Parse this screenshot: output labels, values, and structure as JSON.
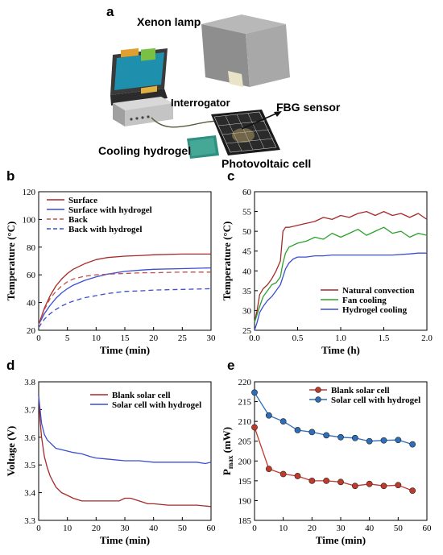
{
  "panel_a": {
    "label": "a",
    "xenon_lamp": "Xenon lamp",
    "interrogator": "Interrogator",
    "fbg_sensor": "FBG sensor",
    "cooling_hydrogel": "Cooling hydrogel",
    "photovoltaic_cell": "Photovoltaic cell",
    "colors": {
      "lamp": "#8a8a8a",
      "laptop": "#3a3a3a",
      "screen": "#2a9d8f",
      "device": "#c8c8c8",
      "panel": "#1a1a1a",
      "hydrogel": "#3a9a8a"
    }
  },
  "chart_data": [
    {
      "panel": "b",
      "type": "line",
      "xlabel": "Time (min)",
      "ylabel": "Temperature (°C)",
      "xlim": [
        0,
        30
      ],
      "ylim": [
        20,
        120
      ],
      "xticks": [
        "0",
        "5",
        "10",
        "15",
        "20",
        "25",
        "30"
      ],
      "yticks": [
        "20",
        "40",
        "60",
        "80",
        "100",
        "120"
      ],
      "legend_position": "top-left",
      "series": [
        {
          "name": "Surface",
          "color": "#a52a2a",
          "dash": false,
          "x": [
            0,
            1,
            2,
            3,
            4,
            5,
            6,
            8,
            10,
            12,
            15,
            18,
            20,
            25,
            30
          ],
          "y": [
            24,
            36,
            45,
            52,
            57,
            61,
            64,
            68,
            71,
            72.5,
            73.5,
            74,
            74.5,
            75,
            75
          ]
        },
        {
          "name": "Surface with hydrogel",
          "color": "#3a4fd0",
          "dash": false,
          "x": [
            0,
            1,
            2,
            3,
            4,
            5,
            6,
            8,
            10,
            12,
            15,
            18,
            20,
            25,
            30
          ],
          "y": [
            24,
            32,
            38,
            43,
            47,
            50,
            52.5,
            56,
            58.5,
            60.5,
            62.5,
            63.5,
            64,
            64.5,
            65
          ]
        },
        {
          "name": "Back",
          "color": "#c0504d",
          "dash": true,
          "x": [
            0,
            1,
            2,
            3,
            4,
            5,
            6,
            8,
            10,
            12,
            15,
            18,
            20,
            25,
            30
          ],
          "y": [
            24,
            35,
            43,
            48,
            52,
            55,
            57,
            59,
            60,
            60.5,
            61,
            61.5,
            61.5,
            62,
            62
          ]
        },
        {
          "name": "Back with hydrogel",
          "color": "#3a4fd0",
          "dash": true,
          "x": [
            0,
            1,
            2,
            3,
            4,
            5,
            6,
            8,
            10,
            12,
            15,
            18,
            20,
            25,
            30
          ],
          "y": [
            22,
            28,
            32,
            35,
            37.5,
            39.5,
            41,
            43.5,
            45,
            46.5,
            48,
            48.5,
            49,
            49.5,
            50
          ]
        }
      ]
    },
    {
      "panel": "c",
      "type": "line",
      "xlabel": "Time (h)",
      "ylabel": "Temperature (°C)",
      "xlim": [
        0,
        2
      ],
      "ylim": [
        25,
        60
      ],
      "xticks": [
        "0.0",
        "0.5",
        "1.0",
        "1.5",
        "2.0"
      ],
      "yticks": [
        "25",
        "30",
        "35",
        "40",
        "45",
        "50",
        "55",
        "60"
      ],
      "legend_position": "bottom-right",
      "series": [
        {
          "name": "Natural convection",
          "color": "#a52a2a",
          "x": [
            0,
            0.03,
            0.06,
            0.1,
            0.15,
            0.2,
            0.25,
            0.3,
            0.33,
            0.36,
            0.4,
            0.5,
            0.6,
            0.7,
            0.8,
            0.9,
            1.0,
            1.1,
            1.2,
            1.3,
            1.4,
            1.5,
            1.6,
            1.7,
            1.8,
            1.9,
            2.0
          ],
          "y": [
            27,
            30,
            34,
            35.5,
            36.5,
            38,
            40,
            42.5,
            50,
            51,
            51,
            51.5,
            52,
            52.5,
            53.5,
            53,
            54,
            53.5,
            54.5,
            55,
            54,
            55,
            54,
            54.5,
            53.5,
            54.5,
            53
          ]
        },
        {
          "name": "Fan cooling",
          "color": "#2ca02c",
          "x": [
            0,
            0.03,
            0.06,
            0.1,
            0.15,
            0.2,
            0.25,
            0.3,
            0.33,
            0.36,
            0.4,
            0.5,
            0.6,
            0.7,
            0.8,
            0.9,
            1.0,
            1.1,
            1.2,
            1.3,
            1.4,
            1.5,
            1.6,
            1.7,
            1.8,
            1.9,
            2.0
          ],
          "y": [
            27,
            29,
            31,
            33.5,
            35,
            36.5,
            37,
            38.5,
            42,
            44.5,
            46,
            47,
            47.5,
            48.5,
            48,
            49.5,
            48.5,
            49.5,
            50.5,
            49,
            50,
            51,
            49.5,
            50,
            48.5,
            49.5,
            49
          ]
        },
        {
          "name": "Hydrogel cooling",
          "color": "#3a4fd0",
          "x": [
            0,
            0.03,
            0.06,
            0.1,
            0.15,
            0.2,
            0.25,
            0.3,
            0.33,
            0.36,
            0.4,
            0.45,
            0.5,
            0.6,
            0.7,
            0.8,
            0.9,
            1.0,
            1.2,
            1.4,
            1.6,
            1.8,
            1.9,
            2.0
          ],
          "y": [
            25,
            27,
            29.5,
            31,
            32.5,
            33.5,
            35,
            36.5,
            38.5,
            40.5,
            42,
            43,
            43.5,
            43.5,
            43.8,
            43.8,
            44,
            44,
            44,
            44,
            44,
            44.3,
            44.5,
            44.5
          ]
        }
      ]
    },
    {
      "panel": "d",
      "type": "line",
      "xlabel": "Time (min)",
      "ylabel": "Voltage (V)",
      "xlim": [
        0,
        60
      ],
      "ylim": [
        3.3,
        3.8
      ],
      "xticks": [
        "0",
        "10",
        "20",
        "30",
        "40",
        "50",
        "60"
      ],
      "yticks": [
        "3.3",
        "3.4",
        "3.5",
        "3.6",
        "3.7",
        "3.8"
      ],
      "legend_position": "top-right",
      "series": [
        {
          "name": "Blank solar cell",
          "color": "#a52a2a",
          "x": [
            0,
            0.5,
            1,
            2,
            3,
            4,
            5,
            6,
            8,
            10,
            12,
            15,
            18,
            20,
            22,
            25,
            28,
            30,
            32,
            35,
            38,
            40,
            45,
            50,
            55,
            60
          ],
          "y": [
            3.75,
            3.66,
            3.6,
            3.53,
            3.49,
            3.46,
            3.44,
            3.42,
            3.4,
            3.39,
            3.38,
            3.37,
            3.37,
            3.37,
            3.37,
            3.37,
            3.37,
            3.38,
            3.38,
            3.37,
            3.36,
            3.36,
            3.355,
            3.355,
            3.355,
            3.35
          ]
        },
        {
          "name": "Solar cell with hydrogel",
          "color": "#3a4fd0",
          "x": [
            0,
            0.5,
            1,
            2,
            3,
            4,
            5,
            6,
            8,
            10,
            12,
            15,
            18,
            20,
            25,
            30,
            35,
            40,
            45,
            50,
            55,
            58,
            60
          ],
          "y": [
            3.75,
            3.7,
            3.65,
            3.61,
            3.59,
            3.58,
            3.57,
            3.56,
            3.555,
            3.55,
            3.545,
            3.54,
            3.53,
            3.525,
            3.52,
            3.515,
            3.515,
            3.51,
            3.51,
            3.51,
            3.51,
            3.505,
            3.51
          ]
        }
      ]
    },
    {
      "panel": "e",
      "type": "line",
      "xlabel": "Time (min)",
      "ylabel": "P",
      "ylabel_sub": "max",
      "ylabel_unit": " (mW)",
      "xlim": [
        0,
        60
      ],
      "ylim": [
        185,
        220
      ],
      "xticks": [
        "0",
        "10",
        "20",
        "30",
        "40",
        "50",
        "60"
      ],
      "yticks": [
        "185",
        "190",
        "195",
        "200",
        "205",
        "210",
        "215",
        "220"
      ],
      "legend_position": "top-right",
      "markers": true,
      "series": [
        {
          "name": "Blank solar cell",
          "color": "#c0392b",
          "x": [
            0,
            5,
            10,
            15,
            20,
            25,
            30,
            35,
            40,
            45,
            50,
            55
          ],
          "y": [
            208.5,
            198,
            196.7,
            196.2,
            195,
            195,
            194.7,
            193.7,
            194.2,
            193.7,
            193.9,
            192.5
          ]
        },
        {
          "name": "Solar cell with hydrogel",
          "color": "#2e6db8",
          "x": [
            0,
            5,
            10,
            15,
            20,
            25,
            30,
            35,
            40,
            45,
            50,
            55
          ],
          "y": [
            217.3,
            211.5,
            210,
            207.8,
            207.3,
            206.5,
            206,
            205.8,
            205,
            205.2,
            205.3,
            204.2
          ]
        }
      ]
    }
  ],
  "panel_labels": [
    "b",
    "c",
    "d",
    "e"
  ]
}
